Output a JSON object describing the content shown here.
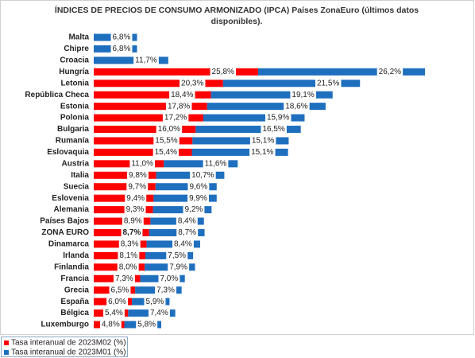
{
  "chart_data": {
    "type": "stacked-hbar",
    "title": [
      "ÍNDICES DE PRECIOS DE CONSUMO ARMONIZADO (IPCA) Países ZonaEuro (últimos datos",
      "disponibles)."
    ],
    "categories": [
      "Malta",
      "Chipre",
      "Croacia",
      "Hungría",
      "Letonia",
      "República Checa",
      "Estonia",
      "Polonia",
      "Bulgaria",
      "Rumanía",
      "Eslovaquia",
      "Austria",
      "Italia",
      "Suecia",
      "Eslovenia",
      "Alemania",
      "Países Bajos",
      "ZONA EURO",
      "Dinamarca",
      "Irlanda",
      "Finlandia",
      "Francia",
      "Grecia",
      "España",
      "Bélgica",
      "Luxemburgo"
    ],
    "highlight_index": 17,
    "legend": "bottom-left",
    "series": [
      {
        "name": "Tasa interanual de 2023M02 (%)",
        "color": "#ff0000",
        "values": [
          null,
          null,
          null,
          25.8,
          20.3,
          18.4,
          17.8,
          17.2,
          16.0,
          15.5,
          15.4,
          11.0,
          9.8,
          9.7,
          9.4,
          9.3,
          8.9,
          8.7,
          8.3,
          8.1,
          8.0,
          7.3,
          6.5,
          6.0,
          5.4,
          4.8
        ],
        "value_labels": [
          null,
          null,
          null,
          "25,8%",
          "20,3%",
          "18,4%",
          "17,8%",
          "17,2%",
          "16,0%",
          "15,5%",
          "15,4%",
          "11,0%",
          "9,8%",
          "9,7%",
          "9,4%",
          "9,3%",
          "8,9%",
          "8,7%",
          "8,3%",
          "8,1%",
          "8,0%",
          "7,3%",
          "6,5%",
          "6,0%",
          "5,4%",
          "4,8%"
        ]
      },
      {
        "name": "Tasa interanual de 2023M01 (%)",
        "color": "#1f6fbf",
        "values": [
          6.8,
          6.8,
          11.7,
          26.2,
          21.5,
          19.1,
          18.6,
          15.9,
          16.5,
          15.1,
          15.1,
          11.6,
          10.7,
          9.6,
          9.9,
          9.2,
          8.4,
          8.7,
          8.4,
          7.5,
          7.9,
          7.0,
          7.3,
          5.9,
          7.4,
          5.8
        ],
        "value_labels": [
          "6,8%",
          "6,8%",
          "11,7%",
          "26,2%",
          "21,5%",
          "19,1%",
          "18,6%",
          "15,9%",
          "16,5%",
          "15,1%",
          "15,1%",
          "11,6%",
          "10,7%",
          "9,6%",
          "9,9%",
          "9,2%",
          "8,4%",
          "8,7%",
          "8,4%",
          "7,5%",
          "7,9%",
          "7,0%",
          "7,3%",
          "5,9%",
          "7,4%",
          "5,8%"
        ]
      }
    ]
  }
}
